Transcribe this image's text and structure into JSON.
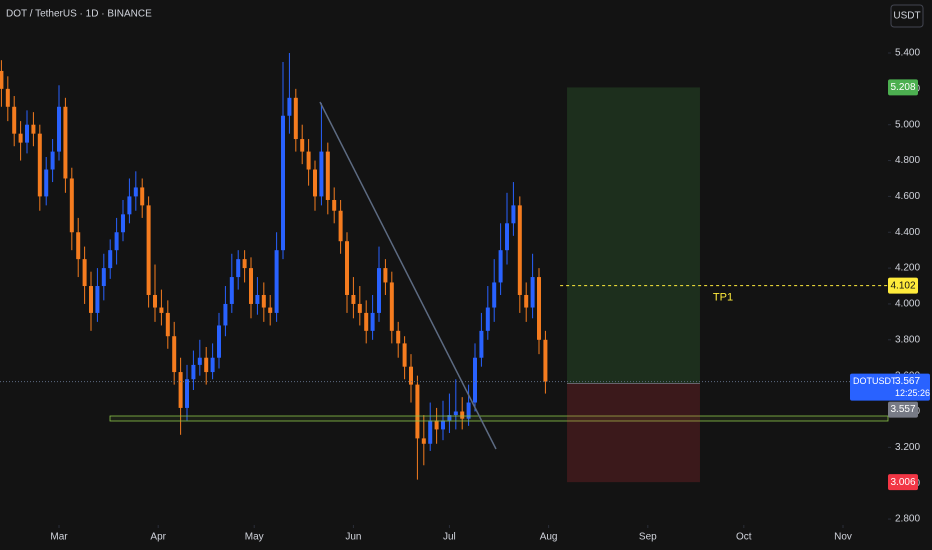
{
  "header": {
    "symbol_title": "DOT / TetherUS · 1D · BINANCE",
    "currency": "USDT"
  },
  "chart_data": {
    "type": "candlestick",
    "up_color": "#2962ff",
    "down_color": "#f57c1f",
    "xlim": [
      -18.44,
      259.06
    ],
    "xticks": [
      {
        "value": 0,
        "label": "Mar"
      },
      {
        "value": 31,
        "label": "Apr"
      },
      {
        "value": 61,
        "label": "May"
      },
      {
        "value": 92,
        "label": "Jun"
      },
      {
        "value": 122,
        "label": "Jul"
      },
      {
        "value": 153,
        "label": "Aug"
      },
      {
        "value": 184,
        "label": "Sep"
      },
      {
        "value": 214,
        "label": "Oct"
      },
      {
        "value": 245,
        "label": "Nov"
      }
    ],
    "ylim": [
      2.7668,
      5.6957
    ],
    "yticks": [
      {
        "value": 2.8,
        "label": "2.800"
      },
      {
        "value": 3.0,
        "label": "3.000"
      },
      {
        "value": 3.2,
        "label": "3.200"
      },
      {
        "value": 3.4,
        "label": "3.400"
      },
      {
        "value": 3.6,
        "label": "3.600"
      },
      {
        "value": 3.8,
        "label": "3.800"
      },
      {
        "value": 4.0,
        "label": "4.000"
      },
      {
        "value": 4.2,
        "label": "4.200"
      },
      {
        "value": 4.4,
        "label": "4.400"
      },
      {
        "value": 4.6,
        "label": "4.600"
      },
      {
        "value": 4.8,
        "label": "4.800"
      },
      {
        "value": 5.0,
        "label": "5.000"
      },
      {
        "value": 5.2,
        "label": "5.200"
      },
      {
        "value": 5.4,
        "label": "5.400"
      }
    ],
    "x": [
      -18,
      -16,
      -14,
      -12,
      -10,
      -8,
      -6,
      -4,
      -2,
      0,
      2,
      4,
      6,
      8,
      10,
      12,
      14,
      16,
      18,
      20,
      22,
      24,
      26,
      28,
      30,
      32,
      34,
      36,
      38,
      40,
      42,
      44,
      46,
      48,
      50,
      52,
      54,
      56,
      58,
      60,
      62,
      64,
      66,
      68,
      70,
      72,
      74,
      76,
      78,
      80,
      82,
      84,
      86,
      88,
      90,
      92,
      94,
      96,
      98,
      100,
      102,
      104,
      106,
      108,
      110,
      112,
      114,
      116,
      118,
      120,
      122,
      124,
      126,
      128,
      130,
      132,
      134,
      136,
      138,
      140,
      142,
      144,
      146,
      148,
      150,
      152
    ],
    "open": [
      5.3,
      5.2,
      5.1,
      4.95,
      4.9,
      5.0,
      4.95,
      4.6,
      4.75,
      4.85,
      5.1,
      4.7,
      4.4,
      4.25,
      4.1,
      3.95,
      4.1,
      4.2,
      4.3,
      4.4,
      4.5,
      4.6,
      4.65,
      4.55,
      4.05,
      3.98,
      3.95,
      3.82,
      3.62,
      3.42,
      3.58,
      3.66,
      3.7,
      3.62,
      3.7,
      3.88,
      4.0,
      4.15,
      4.25,
      4.2,
      4.0,
      4.05,
      3.98,
      3.95,
      4.3,
      5.05,
      5.15,
      4.92,
      4.85,
      4.75,
      4.6,
      4.85,
      4.58,
      4.52,
      4.35,
      4.05,
      4.0,
      3.95,
      3.85,
      3.95,
      4.2,
      4.12,
      3.85,
      3.78,
      3.65,
      3.55,
      3.25,
      3.22,
      3.35,
      3.3,
      3.35,
      3.38,
      3.4,
      3.36,
      3.45,
      3.7,
      3.85,
      3.98,
      4.12,
      4.3,
      4.45,
      4.55,
      4.05,
      3.98,
      4.15,
      3.8
    ],
    "high": [
      5.36,
      5.27,
      5.16,
      5.02,
      5.08,
      5.07,
      5.0,
      4.82,
      4.92,
      5.22,
      5.15,
      4.76,
      4.48,
      4.32,
      4.18,
      4.2,
      4.28,
      4.36,
      4.48,
      4.58,
      4.7,
      4.74,
      4.7,
      4.6,
      4.22,
      4.08,
      4.02,
      3.9,
      3.7,
      3.66,
      3.74,
      3.8,
      3.76,
      3.78,
      3.95,
      4.1,
      4.28,
      4.3,
      4.3,
      4.26,
      4.15,
      4.12,
      4.05,
      4.4,
      5.35,
      5.4,
      5.2,
      5.0,
      4.92,
      4.8,
      5.12,
      4.9,
      4.65,
      4.58,
      4.4,
      4.15,
      4.1,
      4.02,
      4.05,
      4.32,
      4.25,
      4.18,
      3.9,
      3.82,
      3.72,
      3.6,
      3.38,
      3.45,
      3.42,
      3.46,
      3.5,
      3.58,
      3.48,
      3.55,
      3.78,
      3.95,
      4.1,
      4.25,
      4.45,
      4.62,
      4.68,
      4.6,
      4.12,
      4.28,
      4.2,
      3.85
    ],
    "low": [
      5.1,
      5.02,
      4.88,
      4.8,
      4.84,
      4.88,
      4.52,
      4.55,
      4.68,
      4.8,
      4.62,
      4.3,
      4.15,
      4.0,
      3.85,
      3.9,
      4.02,
      4.14,
      4.22,
      4.35,
      4.45,
      4.52,
      4.48,
      3.98,
      3.9,
      3.88,
      3.75,
      3.55,
      3.27,
      3.35,
      3.52,
      3.6,
      3.55,
      3.58,
      3.64,
      3.82,
      3.95,
      4.08,
      4.12,
      3.92,
      3.94,
      3.9,
      3.88,
      3.9,
      4.25,
      4.95,
      4.85,
      4.78,
      4.66,
      4.52,
      4.55,
      4.5,
      4.45,
      4.28,
      3.95,
      3.92,
      3.88,
      3.78,
      3.8,
      3.9,
      4.05,
      3.78,
      3.7,
      3.58,
      3.45,
      3.02,
      3.1,
      3.18,
      3.22,
      3.24,
      3.28,
      3.3,
      3.3,
      3.32,
      3.4,
      3.65,
      3.8,
      3.9,
      4.05,
      4.22,
      4.38,
      3.95,
      3.9,
      3.92,
      3.72,
      3.5
    ],
    "close": [
      5.2,
      5.1,
      4.95,
      4.9,
      5.0,
      4.95,
      4.6,
      4.75,
      4.85,
      5.1,
      4.7,
      4.4,
      4.25,
      4.1,
      3.95,
      4.1,
      4.2,
      4.3,
      4.4,
      4.5,
      4.6,
      4.65,
      4.55,
      4.05,
      3.98,
      3.95,
      3.82,
      3.62,
      3.42,
      3.58,
      3.66,
      3.7,
      3.62,
      3.7,
      3.88,
      4.0,
      4.15,
      4.25,
      4.2,
      4.0,
      4.05,
      3.98,
      3.95,
      4.3,
      5.05,
      5.15,
      4.92,
      4.85,
      4.75,
      4.6,
      4.85,
      4.58,
      4.52,
      4.35,
      4.05,
      4.0,
      3.95,
      3.85,
      3.95,
      4.2,
      4.12,
      3.85,
      3.78,
      3.65,
      3.55,
      3.25,
      3.22,
      3.35,
      3.3,
      3.35,
      3.38,
      3.4,
      3.36,
      3.45,
      3.7,
      3.85,
      3.98,
      4.12,
      4.3,
      4.45,
      4.55,
      4.05,
      3.98,
      4.15,
      3.8,
      3.567
    ],
    "position": {
      "take_profit": 5.208,
      "entry": 3.557,
      "stop": 3.006,
      "x_range": [
        158.75,
        200.3
      ],
      "profit_color": "#4caf50",
      "loss_color": "#f23645"
    },
    "tp1": {
      "value": 4.102,
      "label": "TP1",
      "x_start": 156.6,
      "color": "#ffeb3b"
    },
    "last_price": {
      "symbol": "DOTUSDT",
      "value": 3.567,
      "countdown": "12:25:26",
      "color": "#2962ff"
    }
  }
}
